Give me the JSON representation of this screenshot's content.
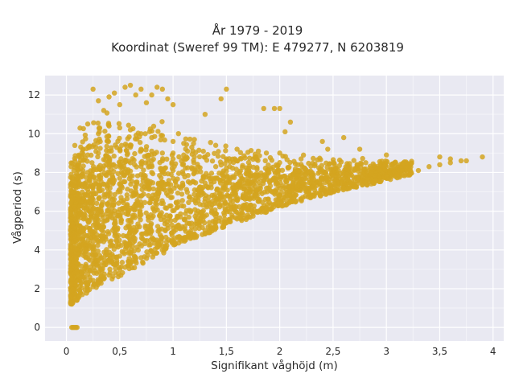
{
  "chart_data": {
    "type": "scatter",
    "title": "År 1979 - 2019",
    "subtitle": "Koordinat (Sweref 99 TM): E 479277, N 6203819",
    "xlabel": "Signifikant våghöjd (m)",
    "ylabel": "Vågperiod (s)",
    "xlim": [
      -0.2,
      4.1
    ],
    "ylim": [
      -0.7,
      13.0
    ],
    "x_ticks": [
      0,
      0.5,
      1,
      1.5,
      2,
      2.5,
      3,
      3.5,
      4
    ],
    "x_tick_labels": [
      "0",
      "0,5",
      "1",
      "1,5",
      "2",
      "2,5",
      "3",
      "3,5",
      "4"
    ],
    "y_ticks": [
      0,
      2,
      4,
      6,
      8,
      10,
      12
    ],
    "y_tick_labels": [
      "0",
      "2",
      "4",
      "6",
      "8",
      "10",
      "12"
    ],
    "grid": true,
    "legend": "none",
    "background_color": "#e9e9f2",
    "point_color": "#d4a520",
    "series": [
      {
        "x": [
          0.05,
          0.06,
          0.07,
          0.08,
          0.09,
          0.1,
          0.05,
          0.06,
          0.08,
          0.1,
          0.12,
          0.15,
          0.2,
          0.25,
          0.3,
          0.35,
          0.4,
          0.5,
          0.6,
          0.7,
          0.8,
          0.9,
          1.0,
          1.1,
          1.2,
          1.3,
          1.4,
          1.5,
          1.6,
          1.7,
          1.8,
          1.9,
          2.0,
          2.1,
          2.2,
          2.3,
          2.4,
          2.5,
          2.6,
          2.7,
          2.8,
          2.9,
          3.0,
          3.05,
          3.1,
          3.2,
          3.3,
          3.4,
          3.5,
          3.6,
          3.7,
          3.9,
          0.06,
          0.07,
          0.08,
          0.1,
          0.12,
          0.15,
          0.2,
          0.25,
          0.3,
          0.35,
          0.4,
          0.45,
          0.5,
          0.6,
          0.7,
          0.8,
          0.9,
          1.0,
          1.2,
          1.4,
          0.06,
          0.08,
          0.1,
          0.15,
          0.2,
          0.25,
          0.3,
          0.4,
          0.5,
          0.6,
          0.7,
          0.8,
          0.9,
          1.0,
          1.1,
          1.2,
          0.08,
          0.12,
          0.2,
          0.3,
          0.4,
          0.5,
          0.6,
          0.7,
          0.8,
          0.9,
          1.0,
          1.1,
          1.3,
          1.5,
          1.6,
          0.2,
          0.3,
          0.4,
          0.5,
          0.6,
          0.7,
          0.8,
          0.9,
          1.0,
          1.1,
          1.2,
          1.4,
          1.6,
          1.8,
          2.0,
          2.2,
          0.25,
          0.3,
          0.35,
          0.4,
          0.45,
          0.5,
          0.55,
          0.6,
          0.65,
          0.7,
          0.75,
          0.8,
          0.85,
          0.9,
          0.95,
          1.0,
          1.3,
          1.45,
          1.5,
          1.85,
          1.95,
          2.0,
          2.05,
          2.1,
          2.4,
          2.45,
          2.6,
          2.75,
          3.0,
          3.5,
          3.6,
          3.75
        ],
        "y": [
          0.0,
          0.0,
          0.0,
          0.0,
          0.0,
          0.0,
          1.2,
          1.3,
          1.5,
          1.4,
          1.6,
          1.7,
          1.9,
          2.1,
          2.3,
          2.5,
          2.7,
          3.0,
          3.3,
          3.6,
          3.9,
          4.2,
          4.4,
          4.6,
          4.8,
          5.0,
          5.2,
          5.4,
          5.6,
          5.8,
          6.0,
          6.1,
          6.3,
          6.5,
          6.6,
          6.8,
          6.9,
          7.0,
          7.2,
          7.4,
          7.5,
          7.6,
          7.7,
          7.8,
          7.9,
          8.0,
          8.1,
          8.3,
          8.4,
          8.5,
          8.6,
          8.8,
          2.5,
          3.4,
          4.6,
          5.5,
          6.0,
          6.5,
          6.8,
          7.0,
          7.2,
          7.4,
          7.5,
          7.6,
          7.7,
          7.8,
          7.9,
          8.0,
          8.0,
          8.1,
          8.2,
          8.3,
          7.0,
          7.5,
          7.7,
          7.8,
          8.0,
          8.1,
          8.2,
          8.3,
          8.4,
          8.5,
          8.5,
          8.6,
          8.6,
          8.7,
          8.7,
          8.8,
          8.6,
          8.8,
          8.9,
          9.0,
          9.1,
          9.2,
          9.3,
          9.2,
          9.1,
          9.0,
          9.0,
          8.9,
          8.8,
          8.7,
          8.6,
          10.5,
          10.0,
          10.4,
          10.3,
          10.2,
          10.0,
          9.8,
          9.9,
          9.6,
          9.5,
          9.7,
          9.4,
          9.2,
          9.1,
          9.0,
          8.7,
          12.3,
          11.7,
          11.2,
          11.9,
          12.1,
          11.5,
          12.4,
          12.5,
          12.0,
          12.3,
          11.6,
          12.0,
          12.4,
          12.3,
          11.8,
          11.5,
          11.0,
          11.8,
          12.3,
          11.3,
          11.3,
          11.3,
          10.1,
          10.6,
          9.6,
          9.2,
          9.8,
          9.2,
          8.9,
          8.8,
          8.7,
          8.6
        ]
      }
    ],
    "min_trend": {
      "x": [
        0.05,
        0.1,
        0.2,
        0.3,
        0.4,
        0.5,
        0.6,
        0.7,
        0.8,
        0.9,
        1.0,
        1.2,
        1.4,
        1.6,
        1.8,
        2.0,
        2.2,
        2.4,
        2.6,
        2.8,
        3.0,
        3.2,
        3.4,
        3.6,
        3.8,
        3.9
      ],
      "y_low": [
        1.2,
        1.4,
        1.8,
        2.1,
        2.4,
        2.6,
        2.9,
        3.2,
        3.5,
        3.8,
        4.1,
        4.6,
        5.0,
        5.4,
        5.8,
        6.2,
        6.5,
        6.8,
        7.1,
        7.3,
        7.6,
        7.8,
        8.0,
        8.2,
        8.4,
        8.5
      ],
      "y_high": [
        9.5,
        10.5,
        11.0,
        11.2,
        11.4,
        11.5,
        11.4,
        11.3,
        11.0,
        10.8,
        10.5,
        10.0,
        9.7,
        9.5,
        9.3,
        9.2,
        9.0,
        8.9,
        8.8,
        8.8,
        8.7,
        8.7,
        8.7,
        8.7,
        8.7,
        8.8
      ]
    }
  }
}
